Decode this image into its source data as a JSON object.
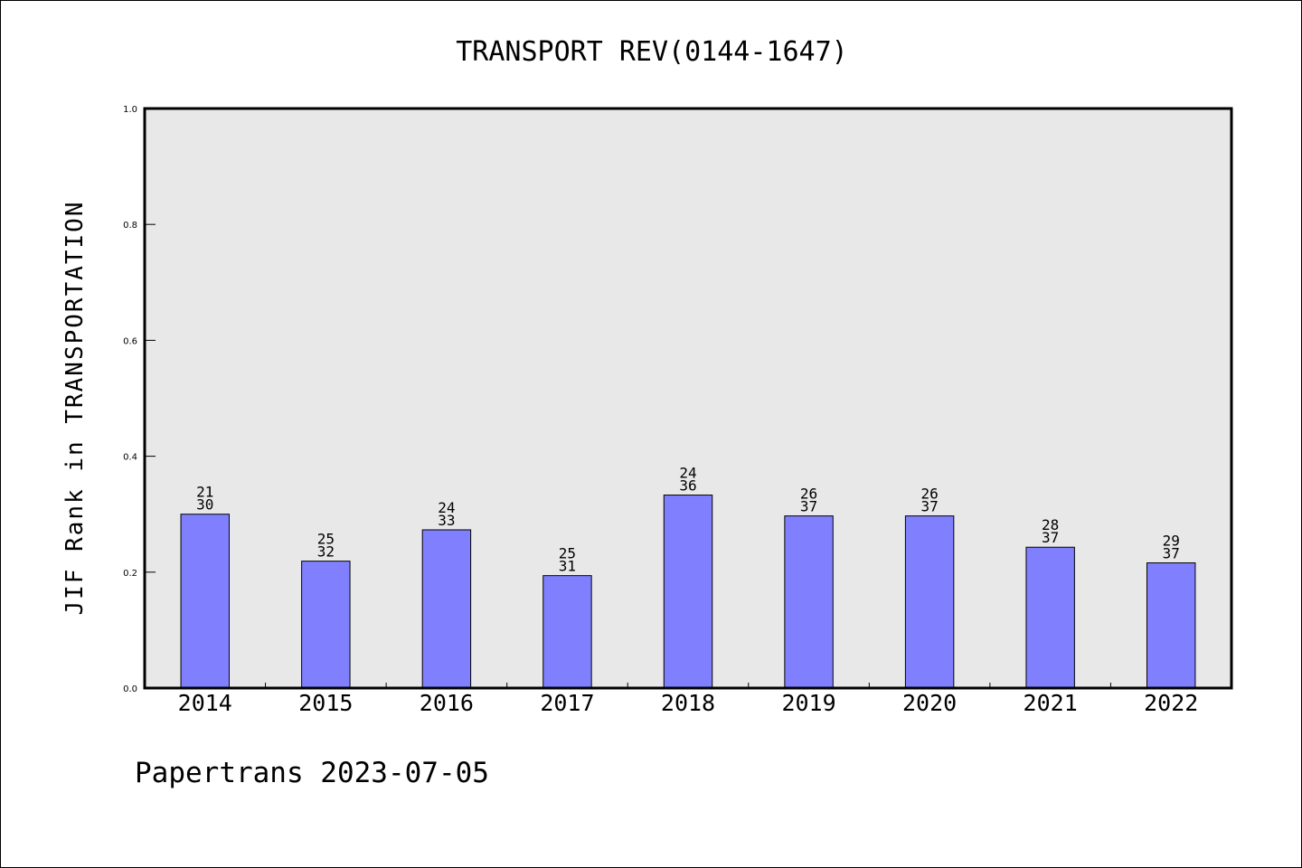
{
  "chart_data": {
    "type": "bar",
    "title": "TRANSPORT REV(0144-1647)",
    "ylabel": "JIF Rank in TRANSPORTATION",
    "xlabel": "",
    "ylim": [
      0,
      1.0
    ],
    "yticks": [
      "0.0",
      "0.2",
      "0.4",
      "0.6",
      "0.8",
      "1.0"
    ],
    "categories": [
      "2014",
      "2015",
      "2016",
      "2017",
      "2018",
      "2019",
      "2020",
      "2021",
      "2022"
    ],
    "values": [
      0.3,
      0.219,
      0.273,
      0.194,
      0.333,
      0.297,
      0.297,
      0.243,
      0.216
    ],
    "bar_labels": [
      {
        "top": "21",
        "bottom": "30"
      },
      {
        "top": "25",
        "bottom": "32"
      },
      {
        "top": "24",
        "bottom": "33"
      },
      {
        "top": "25",
        "bottom": "31"
      },
      {
        "top": "24",
        "bottom": "36"
      },
      {
        "top": "26",
        "bottom": "37"
      },
      {
        "top": "26",
        "bottom": "37"
      },
      {
        "top": "28",
        "bottom": "37"
      },
      {
        "top": "29",
        "bottom": "37"
      }
    ],
    "grid": false,
    "bar_color": "#8080ff",
    "plot_background": "#e8e8e8"
  },
  "footer": {
    "text": "Papertrans 2023-07-05"
  }
}
